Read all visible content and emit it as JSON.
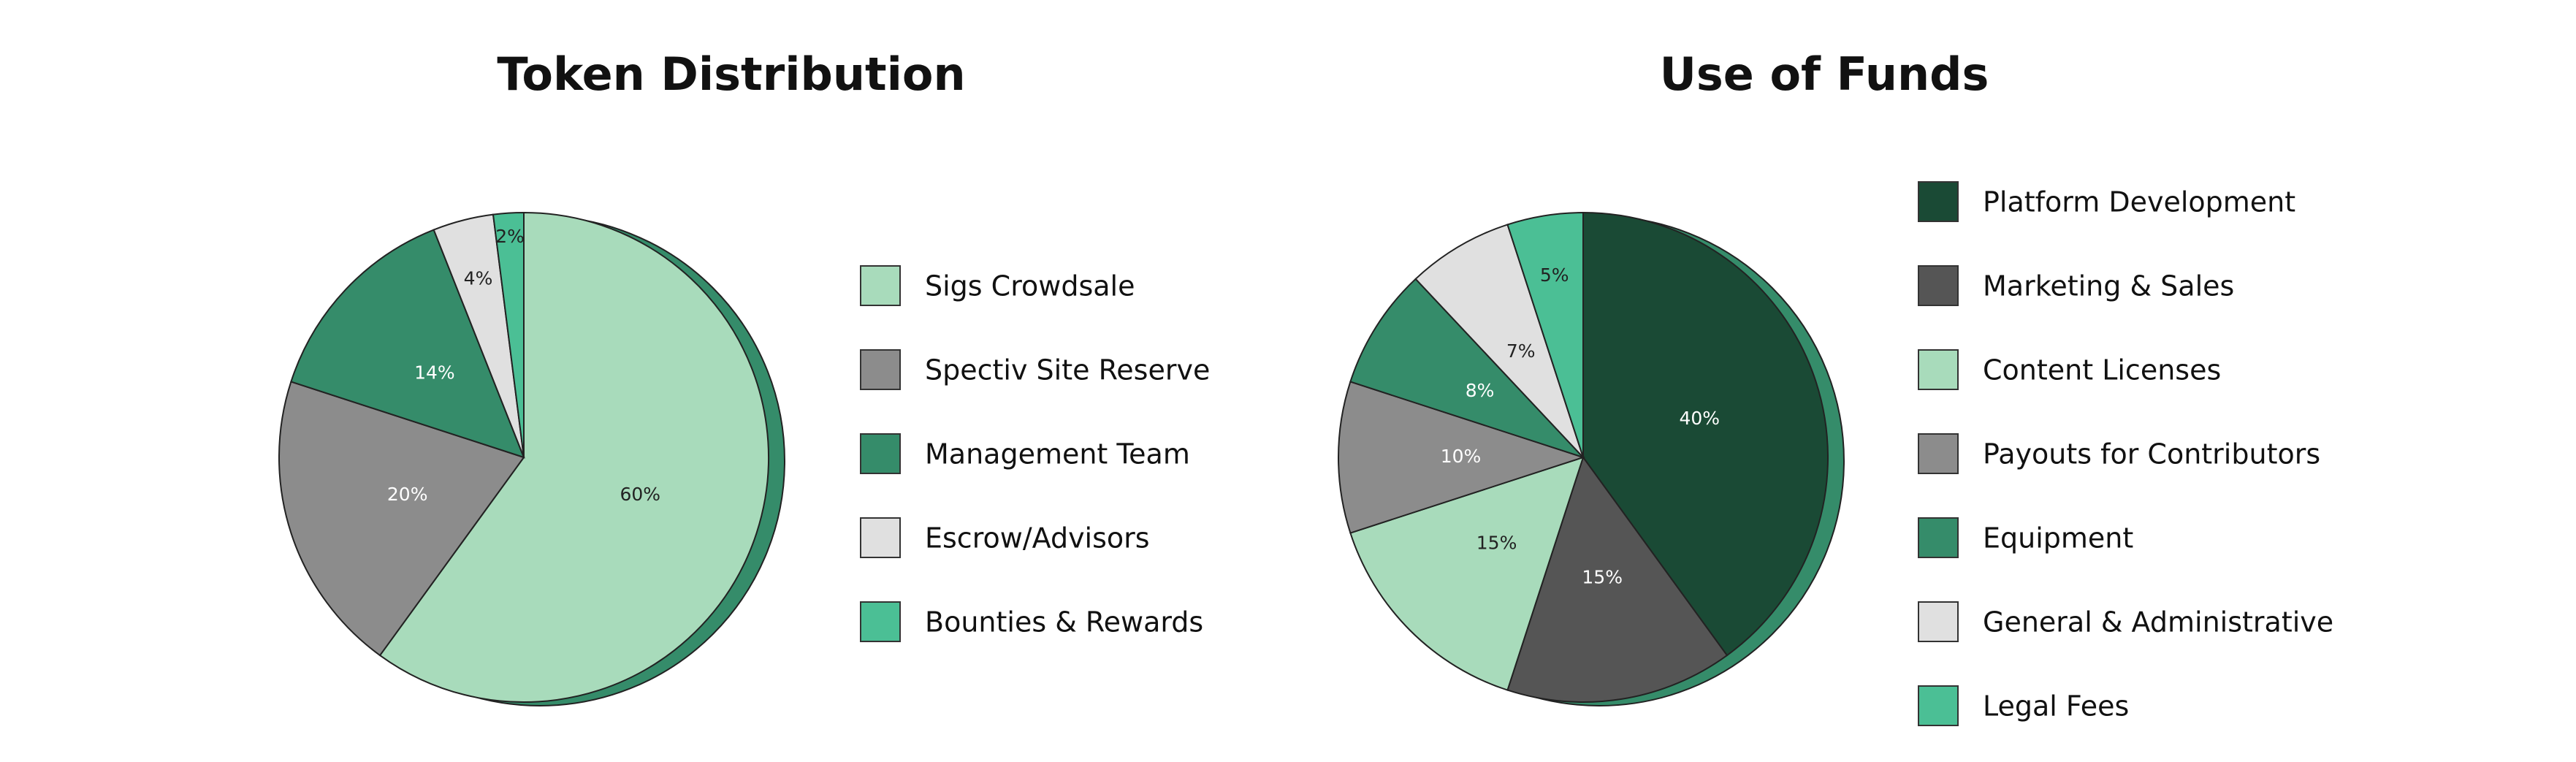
{
  "chart_data": [
    {
      "type": "pie",
      "title": "Token Distribution",
      "categories": [
        "Sigs Crowdsale",
        "Spectiv Site Reserve",
        "Management Team",
        "Escrow/Advisors",
        "Bounties & Rewards"
      ],
      "values": [
        60,
        20,
        14,
        4,
        2
      ],
      "value_labels": [
        "60%",
        "20%",
        "14%",
        "4%",
        "2%"
      ],
      "colors": [
        "#a8dbbb",
        "#8c8c8c",
        "#358c6a",
        "#e0e0e0",
        "#4bbf95"
      ]
    },
    {
      "type": "pie",
      "title": "Use of Funds",
      "categories": [
        "Platform Development",
        "Marketing & Sales",
        "Content Licenses",
        "Payouts for Contributors",
        "Equipment",
        "General & Administrative",
        "Legal Fees"
      ],
      "values": [
        40,
        15,
        15,
        10,
        8,
        7,
        5
      ],
      "value_labels": [
        "40%",
        "15%",
        "15%",
        "10%",
        "8%",
        "7%",
        "5%"
      ],
      "colors": [
        "#1a4a35",
        "#555555",
        "#a8dbbb",
        "#8c8c8c",
        "#358c6a",
        "#e0e0e0",
        "#4bbf95"
      ]
    }
  ]
}
